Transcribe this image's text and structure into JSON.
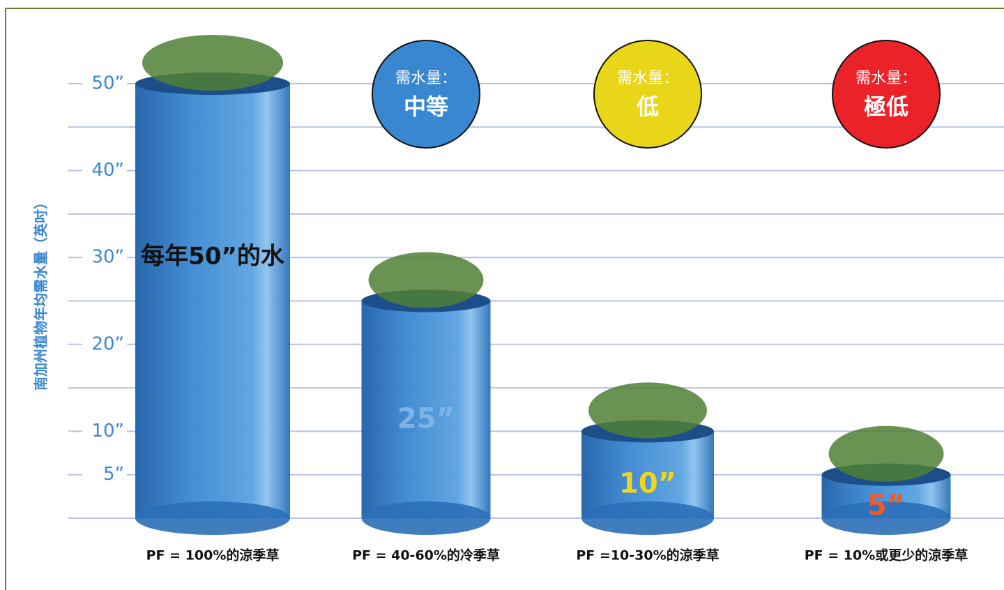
{
  "chart_data": {
    "type": "bar",
    "y_label": "南加州植物年均需水量（英吋）",
    "categories": [
      "PF = 100%的涼季草",
      "PF = 40-60%的冷季草",
      "PF =10-30%的涼季草",
      "PF = 10%或更少的涼季草"
    ],
    "values": [
      50,
      25,
      10,
      5
    ],
    "value_labels": [
      "每年50”的水",
      "25”",
      "10”",
      "5”"
    ],
    "value_label_colors": [
      "#111111",
      "#7fb3e6",
      "#f2d41c",
      "#f05a28"
    ],
    "color": "#3a87d1",
    "ylim": [
      0,
      55
    ],
    "yticks": [
      {
        "value": 5,
        "label": "5”"
      },
      {
        "value": 10,
        "label": "10”"
      },
      {
        "value": 20,
        "label": "20”"
      },
      {
        "value": 30,
        "label": "30”"
      },
      {
        "value": 40,
        "label": "40”"
      },
      {
        "value": 50,
        "label": "50”"
      }
    ],
    "minor_yticks": [
      15,
      25,
      35,
      45
    ],
    "grid": true,
    "badges": [
      null,
      {
        "text": "需水量：",
        "level": "中等",
        "color": "#3a87d1"
      },
      {
        "text": "需水量：",
        "level": "低",
        "color": "#ead619"
      },
      {
        "text": "需水量：",
        "level": "極低",
        "color": "#ec2229"
      }
    ]
  }
}
